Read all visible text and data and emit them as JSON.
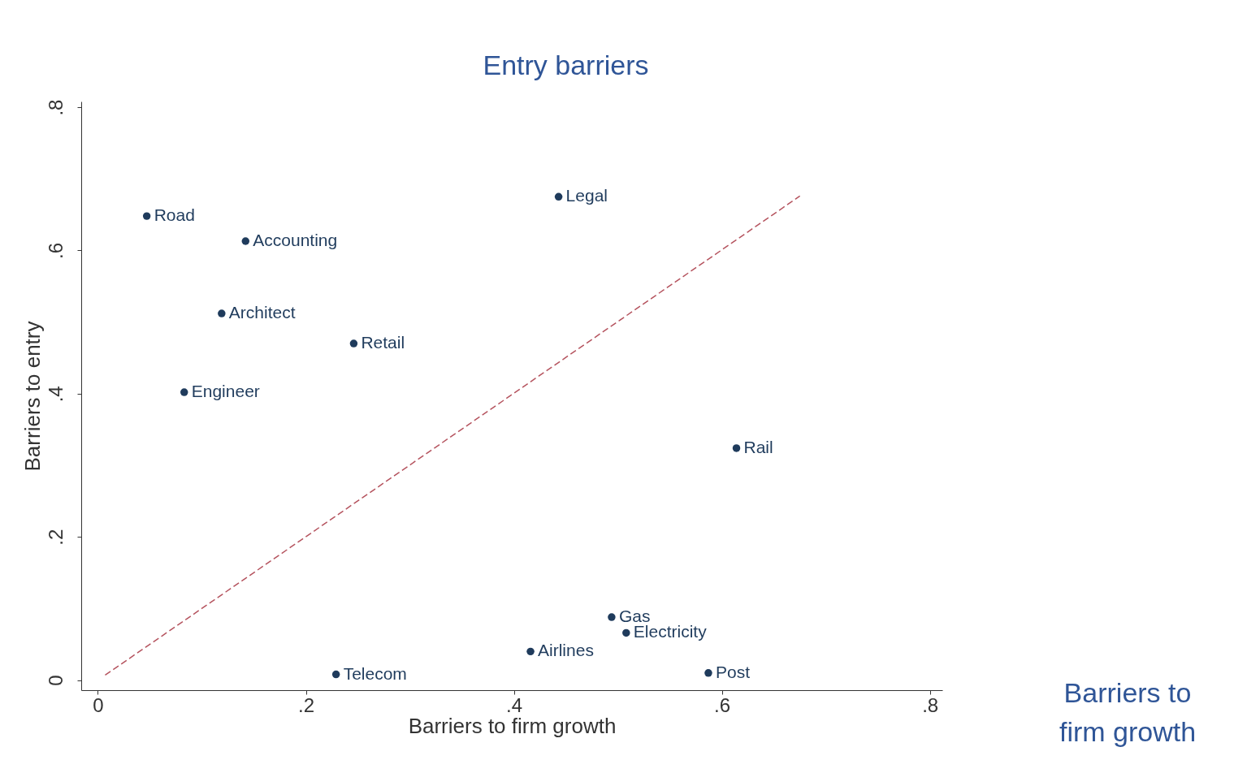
{
  "chart_data": {
    "type": "scatter",
    "xlabel": "Barriers to firm growth",
    "ylabel": "Barriers to entry",
    "xlim": [
      -0.016,
      0.812
    ],
    "ylim": [
      -0.014,
      0.808
    ],
    "xticks": [
      0,
      {
        "value": 0.2,
        "label": ".2"
      },
      {
        "value": 0.4,
        "label": ".4"
      },
      {
        "value": 0.6,
        "label": ".6"
      },
      {
        "value": 0.8,
        "label": ".8"
      }
    ],
    "yticks": [
      0,
      {
        "value": 0.2,
        "label": ".2"
      },
      {
        "value": 0.4,
        "label": ".4"
      },
      {
        "value": 0.6,
        "label": ".6"
      },
      {
        "value": 0.8,
        "label": ".8"
      }
    ],
    "grid": false,
    "marker": "circle",
    "series": [
      {
        "name": "Road",
        "color": "#1f3b5c",
        "x": [
          0.047
        ],
        "values": [
          0.648
        ]
      },
      {
        "name": "Accounting",
        "color": "#1f3b5c",
        "x": [
          0.142
        ],
        "values": [
          0.613
        ]
      },
      {
        "name": "Architect",
        "color": "#1f3b5c",
        "x": [
          0.119
        ],
        "values": [
          0.512
        ]
      },
      {
        "name": "Retail",
        "color": "#1f3b5c",
        "x": [
          0.246
        ],
        "values": [
          0.47
        ]
      },
      {
        "name": "Engineer",
        "color": "#1f3b5c",
        "x": [
          0.083
        ],
        "values": [
          0.402
        ]
      },
      {
        "name": "Legal",
        "color": "#1f3b5c",
        "x": [
          0.443
        ],
        "values": [
          0.675
        ]
      },
      {
        "name": "Rail",
        "color": "#1f3b5c",
        "x": [
          0.614
        ],
        "values": [
          0.324
        ]
      },
      {
        "name": "Gas",
        "color": "#1f3b5c",
        "x": [
          0.494
        ],
        "values": [
          0.088
        ]
      },
      {
        "name": "Electricity",
        "color": "#1f3b5c",
        "x": [
          0.508
        ],
        "values": [
          0.066
        ]
      },
      {
        "name": "Airlines",
        "color": "#1f3b5c",
        "x": [
          0.416
        ],
        "values": [
          0.04
        ]
      },
      {
        "name": "Telecom",
        "color": "#1f3b5c",
        "x": [
          0.229
        ],
        "values": [
          0.008
        ]
      },
      {
        "name": "Post",
        "color": "#1f3b5c",
        "x": [
          0.587
        ],
        "values": [
          0.01
        ]
      },
      {
        "type": "line",
        "color": "#b5535e",
        "line_style": "dashed",
        "marker": "none",
        "x": [
          0.007,
          0.675
        ],
        "values": [
          0.007,
          0.676
        ]
      }
    ],
    "annotations": [
      "Entry barriers",
      "Barriers to firm growth"
    ]
  }
}
